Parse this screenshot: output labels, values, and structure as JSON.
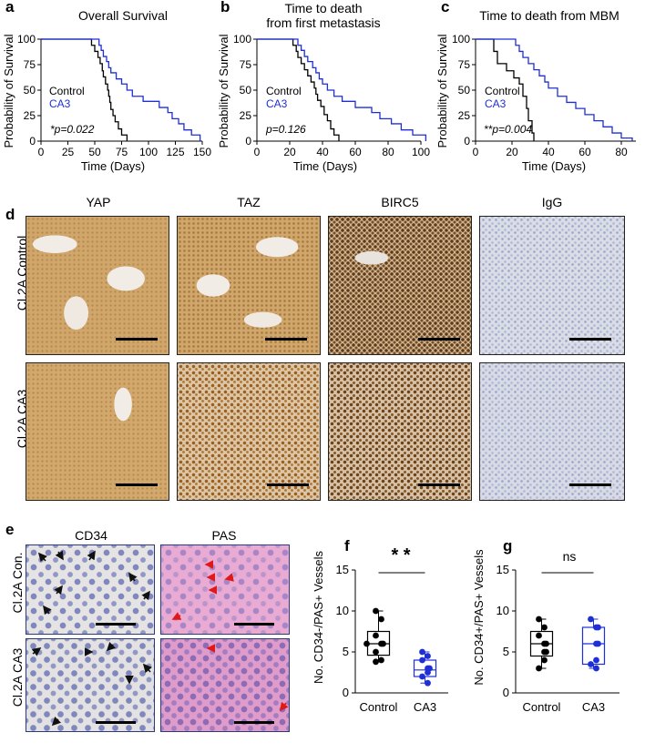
{
  "panels": {
    "a": {
      "letter": "a",
      "title": "Overall Survival",
      "ylabel": "Probability of Survival",
      "xlabel": "Time (Days)",
      "stat": "*p=0.022",
      "legend": [
        "Control",
        "CA3"
      ]
    },
    "b": {
      "letter": "b",
      "title_line1": "Time to death",
      "title_line2": "from first metastasis",
      "ylabel": "Probability of Survival",
      "xlabel": "Time (Days)",
      "stat": "p=0.126",
      "legend": [
        "Control",
        "CA3"
      ]
    },
    "c": {
      "letter": "c",
      "title": "Time to death from MBM",
      "ylabel": "Probability of Survival",
      "xlabel": "Time (Days)",
      "stat": "**p=0.004",
      "legend": [
        "Control",
        "CA3"
      ]
    },
    "d": {
      "letter": "d",
      "columns": [
        "YAP",
        "TAZ",
        "BIRC5",
        "IgG"
      ],
      "rows": [
        "Cl.2A Control",
        "Cl.2A CA3"
      ]
    },
    "e": {
      "letter": "e",
      "columns": [
        "CD34",
        "PAS"
      ],
      "rows": [
        "Cl.2A Con.",
        "Cl.2A CA3"
      ]
    },
    "f": {
      "letter": "f",
      "ylabel": "No. CD34-/PAS+ Vessels",
      "stat": "* *"
    },
    "g": {
      "letter": "g",
      "ylabel": "No. CD34+/PAS+ Vessels",
      "stat": "ns"
    }
  },
  "colors": {
    "control": "#000000",
    "ca3": "#1f2fd6",
    "he_pink": "#e6a6cf",
    "dab_brown": "#c79a5f",
    "hema_blue": "#c9cee0"
  },
  "chart_data": [
    {
      "type": "line",
      "name": "a",
      "title": "Overall Survival",
      "xlabel": "Time (Days)",
      "ylabel": "Probability of Survival",
      "xlim": [
        0,
        150
      ],
      "ylim": [
        0,
        100
      ],
      "xticks": [
        0,
        25,
        50,
        75,
        100,
        125,
        150
      ],
      "yticks": [
        0,
        25,
        50,
        75,
        100
      ],
      "series": [
        {
          "name": "Control",
          "color": "#000000",
          "steps": [
            [
              0,
              100
            ],
            [
              42,
              100
            ],
            [
              47,
              94
            ],
            [
              50,
              88
            ],
            [
              53,
              82
            ],
            [
              55,
              76
            ],
            [
              57,
              69
            ],
            [
              58,
              63
            ],
            [
              60,
              56
            ],
            [
              62,
              50
            ],
            [
              63,
              44
            ],
            [
              64,
              38
            ],
            [
              65,
              31
            ],
            [
              67,
              25
            ],
            [
              69,
              19
            ],
            [
              72,
              12
            ],
            [
              75,
              6
            ],
            [
              80,
              0
            ]
          ]
        },
        {
          "name": "CA3",
          "color": "#1f2fd6",
          "steps": [
            [
              0,
              100
            ],
            [
              52,
              100
            ],
            [
              54,
              94
            ],
            [
              56,
              89
            ],
            [
              58,
              83
            ],
            [
              61,
              78
            ],
            [
              63,
              72
            ],
            [
              65,
              67
            ],
            [
              70,
              61
            ],
            [
              75,
              56
            ],
            [
              80,
              50
            ],
            [
              85,
              44
            ],
            [
              95,
              39
            ],
            [
              110,
              33
            ],
            [
              118,
              28
            ],
            [
              122,
              22
            ],
            [
              128,
              17
            ],
            [
              133,
              11
            ],
            [
              140,
              6
            ],
            [
              148,
              0
            ]
          ]
        }
      ]
    },
    {
      "type": "line",
      "name": "b",
      "title": "Time to death from first metastasis",
      "xlabel": "Time (Days)",
      "ylabel": "Probability of Survival",
      "xlim": [
        0,
        100
      ],
      "ylim": [
        0,
        100
      ],
      "xticks": [
        0,
        20,
        40,
        60,
        80,
        100
      ],
      "yticks": [
        0,
        25,
        50,
        75,
        100
      ],
      "series": [
        {
          "name": "Control",
          "color": "#000000",
          "steps": [
            [
              0,
              100
            ],
            [
              20,
              100
            ],
            [
              22,
              94
            ],
            [
              24,
              88
            ],
            [
              25,
              82
            ],
            [
              27,
              76
            ],
            [
              29,
              70
            ],
            [
              31,
              64
            ],
            [
              33,
              58
            ],
            [
              35,
              52
            ],
            [
              36,
              46
            ],
            [
              37,
              40
            ],
            [
              39,
              34
            ],
            [
              41,
              26
            ],
            [
              43,
              20
            ],
            [
              45,
              12
            ],
            [
              47,
              6
            ],
            [
              50,
              0
            ]
          ]
        },
        {
          "name": "CA3",
          "color": "#1f2fd6",
          "steps": [
            [
              0,
              100
            ],
            [
              23,
              100
            ],
            [
              25,
              94
            ],
            [
              27,
              89
            ],
            [
              29,
              83
            ],
            [
              31,
              78
            ],
            [
              34,
              72
            ],
            [
              36,
              67
            ],
            [
              38,
              61
            ],
            [
              40,
              56
            ],
            [
              43,
              50
            ],
            [
              47,
              44
            ],
            [
              52,
              39
            ],
            [
              60,
              33
            ],
            [
              70,
              28
            ],
            [
              75,
              22
            ],
            [
              82,
              17
            ],
            [
              88,
              11
            ],
            [
              95,
              6
            ],
            [
              103,
              0
            ]
          ]
        }
      ]
    },
    {
      "type": "line",
      "name": "c",
      "title": "Time to death from MBM",
      "xlabel": "Time (Days)",
      "ylabel": "Probability of Survival",
      "xlim": [
        0,
        88
      ],
      "ylim": [
        0,
        100
      ],
      "xticks": [
        0,
        20,
        40,
        60,
        80
      ],
      "yticks": [
        0,
        25,
        50,
        75,
        100
      ],
      "series": [
        {
          "name": "Control",
          "color": "#000000",
          "steps": [
            [
              0,
              100
            ],
            [
              8,
              100
            ],
            [
              10,
              88
            ],
            [
              12,
              76
            ],
            [
              17,
              69
            ],
            [
              21,
              62
            ],
            [
              24,
              56
            ],
            [
              26,
              44
            ],
            [
              28,
              32
            ],
            [
              29,
              20
            ],
            [
              31,
              8
            ],
            [
              32,
              0
            ]
          ]
        },
        {
          "name": "CA3",
          "color": "#1f2fd6",
          "steps": [
            [
              0,
              100
            ],
            [
              20,
              100
            ],
            [
              22,
              94
            ],
            [
              24,
              88
            ],
            [
              26,
              82
            ],
            [
              29,
              76
            ],
            [
              32,
              70
            ],
            [
              35,
              64
            ],
            [
              38,
              58
            ],
            [
              40,
              52
            ],
            [
              45,
              44
            ],
            [
              50,
              38
            ],
            [
              55,
              32
            ],
            [
              60,
              26
            ],
            [
              65,
              20
            ],
            [
              70,
              14
            ],
            [
              75,
              8
            ],
            [
              80,
              3
            ],
            [
              86,
              0
            ]
          ]
        }
      ]
    },
    {
      "type": "box",
      "name": "f",
      "ylabel": "No. CD34-/PAS+ Vessels",
      "ylim": [
        0,
        15
      ],
      "yticks": [
        0,
        5,
        10,
        15
      ],
      "categories": [
        "Control",
        "CA3"
      ],
      "series": [
        {
          "name": "Control",
          "color": "#000000",
          "points": [
            10,
            9,
            7,
            6,
            6,
            6,
            5,
            4,
            3.8
          ],
          "min": 3.8,
          "q1": 4.6,
          "median": 6,
          "q3": 7.5,
          "max": 10
        },
        {
          "name": "CA3",
          "color": "#1f2fd6",
          "points": [
            5,
            4.5,
            4,
            3,
            3,
            2.5,
            2,
            1.2
          ],
          "min": 1.2,
          "q1": 2,
          "median": 2.8,
          "q3": 4,
          "max": 5
        }
      ]
    },
    {
      "type": "box",
      "name": "g",
      "ylabel": "No. CD34+/PAS+ Vessels",
      "ylim": [
        0,
        15
      ],
      "yticks": [
        0,
        5,
        10,
        15
      ],
      "categories": [
        "Control",
        "CA3"
      ],
      "series": [
        {
          "name": "Control",
          "color": "#000000",
          "points": [
            9,
            8,
            7,
            6,
            6,
            5,
            5,
            4,
            3
          ],
          "min": 3,
          "q1": 4.5,
          "median": 6,
          "q3": 7.5,
          "max": 9
        },
        {
          "name": "CA3",
          "color": "#1f2fd6",
          "points": [
            9,
            8,
            8,
            6,
            6,
            4,
            3.5,
            3
          ],
          "min": 3,
          "q1": 3.5,
          "median": 6,
          "q3": 8,
          "max": 9
        }
      ]
    }
  ]
}
